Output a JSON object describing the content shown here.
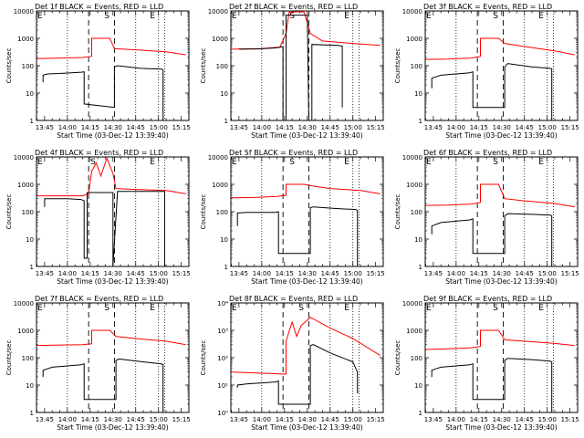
{
  "figure": {
    "xlabel": "Start Time (03-Dec-12 13:39:40)",
    "ylabel": "Counts/sec",
    "x_ticks": [
      "13:45",
      "14:00",
      "14:15",
      "14:30",
      "14:45",
      "15:00",
      "15:15"
    ],
    "y_ticks_decimal": [
      "1",
      "10",
      "100",
      "1000",
      "10000"
    ],
    "y_ticks_power": [
      "10^0",
      "10^1",
      "10^2",
      "10^3",
      "10^4"
    ],
    "colors": {
      "events": "#000000",
      "lld": "#ff0000",
      "frame": "#000000"
    }
  },
  "chart_data": [
    {
      "type": "line",
      "title": "Det 1f BLACK = Events, RED = LLD",
      "xlabel": "Start Time (03-Dec-12 13:39:40)",
      "ylabel": "Counts/sec",
      "y_scale": "log",
      "ylim": [
        1,
        10000
      ],
      "xlim": [
        "13:39:40",
        "15:20"
      ],
      "markers": [
        {
          "label": "E",
          "x": "13:42"
        },
        {
          "label": "S",
          "x": "14:26"
        },
        {
          "label": "E",
          "x": "14:56"
        }
      ],
      "series": [
        {
          "name": "LLD",
          "x": [
            "13:40",
            "13:55",
            "14:10",
            "14:16",
            "14:16",
            "14:22",
            "14:28",
            "14:31",
            "14:45",
            "15:05",
            "15:18"
          ],
          "y": [
            180,
            190,
            200,
            220,
            1000,
            1000,
            1000,
            420,
            380,
            320,
            250
          ]
        },
        {
          "name": "Events",
          "x": [
            "13:44",
            "13:44",
            "13:47",
            "13:55",
            "14:09",
            "14:11",
            "14:11",
            "14:31",
            "14:31",
            "14:33",
            "14:48",
            "15:02",
            "15:03",
            "15:03"
          ],
          "y": [
            25,
            45,
            50,
            52,
            58,
            60,
            4,
            3,
            90,
            100,
            80,
            75,
            70,
            1
          ]
        }
      ]
    },
    {
      "type": "line",
      "title": "Det 2f BLACK = Events, RED = LLD",
      "xlabel": "Start Time (03-Dec-12 13:39:40)",
      "ylabel": "Counts/sec",
      "y_scale": "log",
      "ylim": [
        1,
        10000
      ],
      "xlim": [
        "13:39:40",
        "15:20"
      ],
      "markers": [
        {
          "label": "E",
          "x": "13:42"
        },
        {
          "label": "S",
          "x": "14:20"
        },
        {
          "label": "E",
          "x": "14:56"
        }
      ],
      "series": [
        {
          "name": "LLD",
          "x": [
            "13:40",
            "14:00",
            "14:12",
            "14:16",
            "14:18",
            "14:25",
            "14:28",
            "14:32",
            "14:40",
            "15:00",
            "15:18"
          ],
          "y": [
            400,
            420,
            480,
            1500,
            9000,
            9500,
            9000,
            1500,
            800,
            650,
            550
          ]
        },
        {
          "name": "Events",
          "x": [
            "13:45",
            "13:58",
            "14:10",
            "14:14",
            "14:14",
            "14:16",
            "14:16",
            "14:30",
            "14:31",
            "14:33",
            "14:33",
            "14:50",
            "14:53",
            "14:53"
          ],
          "y": [
            400,
            410,
            450,
            500,
            1,
            1,
            7000,
            7000,
            1,
            1,
            600,
            550,
            520,
            3
          ]
        }
      ]
    },
    {
      "type": "line",
      "title": "Det 3f BLACK = Events, RED = LLD",
      "xlabel": "Start Time (03-Dec-12 13:39:40)",
      "ylabel": "Counts/sec",
      "y_scale": "log",
      "ylim": [
        1,
        10000
      ],
      "xlim": [
        "13:39:40",
        "15:20"
      ],
      "markers": [
        {
          "label": "E",
          "x": "13:42"
        },
        {
          "label": "S",
          "x": "14:26"
        },
        {
          "label": "E",
          "x": "14:56"
        }
      ],
      "series": [
        {
          "name": "LLD",
          "x": [
            "13:40",
            "13:55",
            "14:10",
            "14:16",
            "14:16",
            "14:22",
            "14:28",
            "14:32",
            "14:45",
            "15:05",
            "15:18"
          ],
          "y": [
            170,
            175,
            190,
            220,
            1000,
            1000,
            1000,
            650,
            500,
            350,
            250
          ]
        },
        {
          "name": "Events",
          "x": [
            "13:44",
            "13:44",
            "13:50",
            "14:00",
            "14:09",
            "14:11",
            "14:11",
            "14:32",
            "14:32",
            "14:34",
            "14:50",
            "15:02",
            "15:03",
            "15:03"
          ],
          "y": [
            15,
            35,
            45,
            50,
            55,
            60,
            3,
            3,
            90,
            120,
            90,
            80,
            75,
            1
          ]
        }
      ]
    },
    {
      "type": "line",
      "title": "Det 4f BLACK = Events, RED = LLD",
      "xlabel": "Start Time (03-Dec-12 13:39:40)",
      "ylabel": "Counts/sec",
      "y_scale": "log",
      "ylim": [
        1,
        10000
      ],
      "xlim": [
        "13:39:40",
        "15:20"
      ],
      "markers": [
        {
          "label": "E",
          "x": "13:42"
        },
        {
          "label": "S",
          "x": "14:17"
        },
        {
          "label": "E",
          "x": "14:56"
        }
      ],
      "series": [
        {
          "name": "LLD",
          "x": [
            "13:40",
            "14:00",
            "14:10",
            "14:14",
            "14:16",
            "14:19",
            "14:22",
            "14:26",
            "14:30",
            "14:32",
            "14:45",
            "15:05",
            "15:18"
          ],
          "y": [
            380,
            380,
            380,
            450,
            3000,
            6000,
            2000,
            9000,
            2500,
            700,
            650,
            600,
            450
          ]
        },
        {
          "name": "Events",
          "x": [
            "13:45",
            "13:45",
            "14:00",
            "14:09",
            "14:11",
            "14:11",
            "14:13",
            "14:13",
            "14:30",
            "14:30",
            "14:33",
            "15:02",
            "15:04",
            "15:04"
          ],
          "y": [
            150,
            300,
            300,
            280,
            250,
            2,
            2,
            500,
            500,
            1,
            550,
            550,
            550,
            1
          ]
        }
      ]
    },
    {
      "type": "line",
      "title": "Det 5f BLACK = Events, RED = LLD",
      "xlabel": "Start Time (03-Dec-12 13:39:40)",
      "ylabel": "Counts/sec",
      "y_scale": "log",
      "ylim": [
        1,
        10000
      ],
      "xlim": [
        "13:39:40",
        "15:20"
      ],
      "markers": [
        {
          "label": "E",
          "x": "13:42"
        },
        {
          "label": "S",
          "x": "14:20"
        },
        {
          "label": "E",
          "x": "14:56"
        }
      ],
      "series": [
        {
          "name": "LLD",
          "x": [
            "13:40",
            "13:55",
            "14:10",
            "14:16",
            "14:16",
            "14:22",
            "14:28",
            "14:32",
            "14:45",
            "15:05",
            "15:18"
          ],
          "y": [
            320,
            330,
            360,
            400,
            1000,
            1000,
            1000,
            900,
            700,
            600,
            450
          ]
        },
        {
          "name": "Events",
          "x": [
            "13:44",
            "13:44",
            "13:50",
            "14:00",
            "14:09",
            "14:11",
            "14:11",
            "14:32",
            "14:32",
            "14:34",
            "14:50",
            "15:02",
            "15:03",
            "15:03"
          ],
          "y": [
            30,
            90,
            95,
            95,
            95,
            100,
            3,
            3,
            140,
            150,
            130,
            120,
            110,
            1
          ]
        }
      ]
    },
    {
      "type": "line",
      "title": "Det 6f BLACK = Events, RED = LLD",
      "xlabel": "Start Time (03-Dec-12 13:39:40)",
      "ylabel": "Counts/sec",
      "y_scale": "log",
      "ylim": [
        1,
        10000
      ],
      "xlim": [
        "13:39:40",
        "15:20"
      ],
      "markers": [
        {
          "label": "E",
          "x": "13:42"
        },
        {
          "label": "S",
          "x": "14:26"
        },
        {
          "label": "E",
          "x": "14:56"
        }
      ],
      "series": [
        {
          "name": "LLD",
          "x": [
            "13:40",
            "13:55",
            "14:10",
            "14:16",
            "14:16",
            "14:22",
            "14:28",
            "14:32",
            "14:45",
            "15:05",
            "15:18"
          ],
          "y": [
            170,
            175,
            190,
            220,
            1000,
            1000,
            1000,
            300,
            250,
            200,
            150
          ]
        },
        {
          "name": "Events",
          "x": [
            "13:44",
            "13:44",
            "13:50",
            "14:00",
            "14:09",
            "14:11",
            "14:11",
            "14:32",
            "14:32",
            "14:34",
            "14:50",
            "15:02",
            "15:03",
            "15:03"
          ],
          "y": [
            15,
            30,
            40,
            45,
            50,
            55,
            3,
            3,
            70,
            85,
            80,
            75,
            70,
            1
          ]
        }
      ]
    },
    {
      "type": "line",
      "title": "Det 7f BLACK = Events, RED = LLD",
      "xlabel": "Start Time (03-Dec-12 13:39:40)",
      "ylabel": "Counts/sec",
      "y_scale": "log",
      "ylim": [
        1,
        10000
      ],
      "xlim": [
        "13:39:40",
        "15:20"
      ],
      "markers": [
        {
          "label": "E",
          "x": "13:42"
        },
        {
          "label": "S",
          "x": "14:26"
        },
        {
          "label": "E",
          "x": "14:56"
        }
      ],
      "series": [
        {
          "name": "LLD",
          "x": [
            "13:40",
            "13:55",
            "14:10",
            "14:16",
            "14:16",
            "14:22",
            "14:28",
            "14:32",
            "14:45",
            "15:05",
            "15:18"
          ],
          "y": [
            280,
            290,
            300,
            320,
            1000,
            1000,
            1000,
            600,
            500,
            400,
            300
          ]
        },
        {
          "name": "Events",
          "x": [
            "13:44",
            "13:44",
            "13:50",
            "14:00",
            "14:09",
            "14:11",
            "14:11",
            "14:32",
            "14:32",
            "14:34",
            "14:50",
            "15:02",
            "15:03",
            "15:03"
          ],
          "y": [
            20,
            35,
            45,
            50,
            55,
            60,
            3,
            3,
            80,
            90,
            70,
            60,
            55,
            1
          ]
        }
      ]
    },
    {
      "type": "line",
      "title": "Det 8f BLACK = Events, RED = LLD",
      "xlabel": "Start Time (03-Dec-12 13:39:40)",
      "ylabel": "Counts/sec",
      "y_scale": "log",
      "ylim": [
        1,
        10000
      ],
      "xlim": [
        "13:39:40",
        "15:20"
      ],
      "markers": [
        {
          "label": "E",
          "x": "13:42"
        },
        {
          "label": "S",
          "x": "14:26"
        },
        {
          "label": "E",
          "x": "14:56"
        }
      ],
      "series": [
        {
          "name": "LLD",
          "x": [
            "13:40",
            "13:55",
            "14:10",
            "14:16",
            "14:16",
            "14:20",
            "14:23",
            "14:26",
            "14:32",
            "14:45",
            "15:00",
            "15:18"
          ],
          "y": [
            30,
            28,
            26,
            25,
            400,
            2000,
            600,
            1500,
            3000,
            1200,
            500,
            120
          ]
        },
        {
          "name": "Events",
          "x": [
            "13:44",
            "13:44",
            "13:50",
            "14:00",
            "14:09",
            "14:11",
            "14:11",
            "14:32",
            "14:32",
            "14:34",
            "14:45",
            "15:00",
            "15:03",
            "15:03"
          ],
          "y": [
            8,
            10,
            11,
            12,
            13,
            14,
            2,
            2,
            280,
            300,
            150,
            70,
            30,
            5
          ]
        }
      ]
    },
    {
      "type": "line",
      "title": "Det 9f BLACK = Events, RED = LLD",
      "xlabel": "Start Time (03-Dec-12 13:39:40)",
      "ylabel": "Counts/sec",
      "y_scale": "log",
      "ylim": [
        1,
        10000
      ],
      "xlim": [
        "13:39:40",
        "15:20"
      ],
      "markers": [
        {
          "label": "E",
          "x": "13:42"
        },
        {
          "label": "S",
          "x": "14:26"
        },
        {
          "label": "E",
          "x": "14:56"
        }
      ],
      "series": [
        {
          "name": "LLD",
          "x": [
            "13:40",
            "13:55",
            "14:10",
            "14:16",
            "14:16",
            "14:22",
            "14:28",
            "14:32",
            "14:45",
            "15:05",
            "15:18"
          ],
          "y": [
            200,
            210,
            230,
            260,
            1000,
            1000,
            1000,
            450,
            400,
            330,
            280
          ]
        },
        {
          "name": "Events",
          "x": [
            "13:44",
            "13:44",
            "13:50",
            "14:00",
            "14:09",
            "14:11",
            "14:11",
            "14:32",
            "14:32",
            "14:34",
            "14:50",
            "15:02",
            "15:03",
            "15:03"
          ],
          "y": [
            20,
            35,
            45,
            50,
            55,
            60,
            3,
            3,
            80,
            95,
            85,
            75,
            70,
            1
          ]
        }
      ]
    }
  ]
}
